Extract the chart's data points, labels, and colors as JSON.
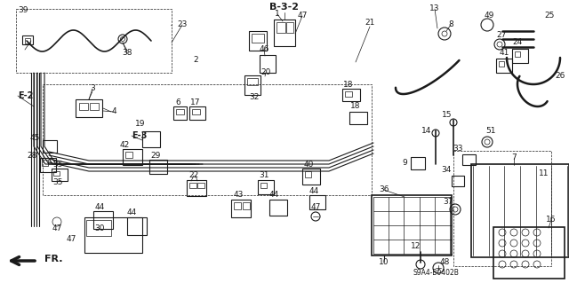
{
  "bg_color": "#ffffff",
  "line_color": "#1a1a1a",
  "fig_width": 6.4,
  "fig_height": 3.19,
  "dpi": 100,
  "gray": "#888888",
  "darkgray": "#444444"
}
